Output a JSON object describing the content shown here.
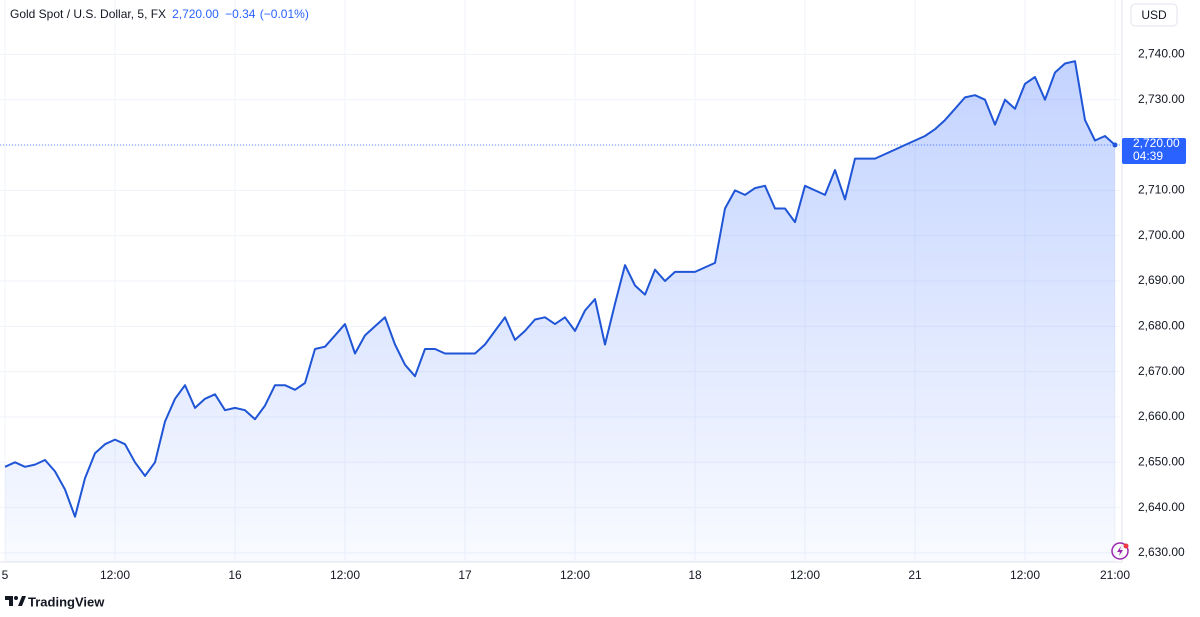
{
  "chart_data": {
    "type": "area",
    "title": "Gold Spot / U.S. Dollar, 5, FX",
    "price_label": "2,720.00",
    "change_label": "−0.34",
    "change_pct_label": "(−0.01%)",
    "currency": "USD",
    "last_value": 2720,
    "last_value_label": "2,720.00",
    "countdown": "04:39",
    "brand": "TradingView",
    "color": "#1f55d6",
    "grid": true,
    "categories": [
      "5",
      null,
      null,
      null,
      null,
      null,
      null,
      null,
      null,
      null,
      null,
      "12:00",
      null,
      null,
      null,
      null,
      null,
      null,
      null,
      null,
      null,
      null,
      null,
      "16",
      null,
      null,
      null,
      null,
      null,
      null,
      null,
      null,
      null,
      null,
      "12:00",
      null,
      null,
      null,
      null,
      null,
      null,
      null,
      null,
      null,
      null,
      null,
      "17",
      null,
      null,
      null,
      null,
      null,
      null,
      null,
      null,
      null,
      null,
      "12:00",
      null,
      null,
      null,
      null,
      null,
      null,
      null,
      null,
      null,
      null,
      null,
      "18",
      null,
      null,
      null,
      null,
      null,
      null,
      null,
      null,
      null,
      null,
      "12:00",
      null,
      null,
      null,
      null,
      null,
      null,
      null,
      null,
      null,
      null,
      "21",
      null,
      null,
      null,
      null,
      null,
      null,
      null,
      null,
      null,
      null,
      "12:00",
      null,
      null,
      null,
      null,
      null,
      null,
      null,
      null,
      "21:00"
    ],
    "values": [
      2649,
      2650,
      2649,
      2649.5,
      2650.5,
      2648,
      2644,
      2638,
      2646.5,
      2652,
      2654,
      2655,
      2654,
      2650,
      2647,
      2650,
      2659,
      2664,
      2667,
      2662,
      2664,
      2665,
      2661.5,
      2662,
      2661.5,
      2659.5,
      2662.5,
      2667,
      2667,
      2666,
      2667.5,
      2675,
      2675.5,
      2678,
      2680.5,
      2674,
      2678,
      2680,
      2682,
      2676,
      2671.5,
      2669,
      2675,
      2675,
      2674,
      2674,
      2674,
      2674,
      2676,
      2679,
      2682,
      2677,
      2679,
      2681.5,
      2682,
      2680.5,
      2682,
      2679,
      2683.5,
      2686,
      2676,
      2685,
      2693.5,
      2689,
      2687,
      2692.5,
      2690,
      2692,
      2692,
      2692,
      2693,
      2694,
      2706,
      2710,
      2709,
      2710.5,
      2711,
      2706,
      2706,
      2703,
      2711,
      2710,
      2709,
      2714.5,
      2708,
      2717,
      2717,
      2717,
      2718,
      2719,
      2720,
      2721,
      2722,
      2723.5,
      2725.5,
      2728,
      2730.5,
      2731,
      2730,
      2724.5,
      2730,
      2728,
      2733.5,
      2735,
      2730,
      2736,
      2738,
      2738.5,
      2725.5,
      2721,
      2722,
      2720
    ],
    "ylim": [
      2628,
      2752
    ],
    "yticks": [
      {
        "value": 2630,
        "label": "2,630.00"
      },
      {
        "value": 2640,
        "label": "2,640.00"
      },
      {
        "value": 2650,
        "label": "2,650.00"
      },
      {
        "value": 2660,
        "label": "2,660.00"
      },
      {
        "value": 2670,
        "label": "2,670.00"
      },
      {
        "value": 2680,
        "label": "2,680.00"
      },
      {
        "value": 2690,
        "label": "2,690.00"
      },
      {
        "value": 2700,
        "label": "2,700.00"
      },
      {
        "value": 2710,
        "label": "2,710.00"
      },
      {
        "value": 2720,
        "label": "2,720.00"
      },
      {
        "value": 2730,
        "label": "2,730.00"
      },
      {
        "value": 2740,
        "label": "2,740.00"
      }
    ]
  }
}
